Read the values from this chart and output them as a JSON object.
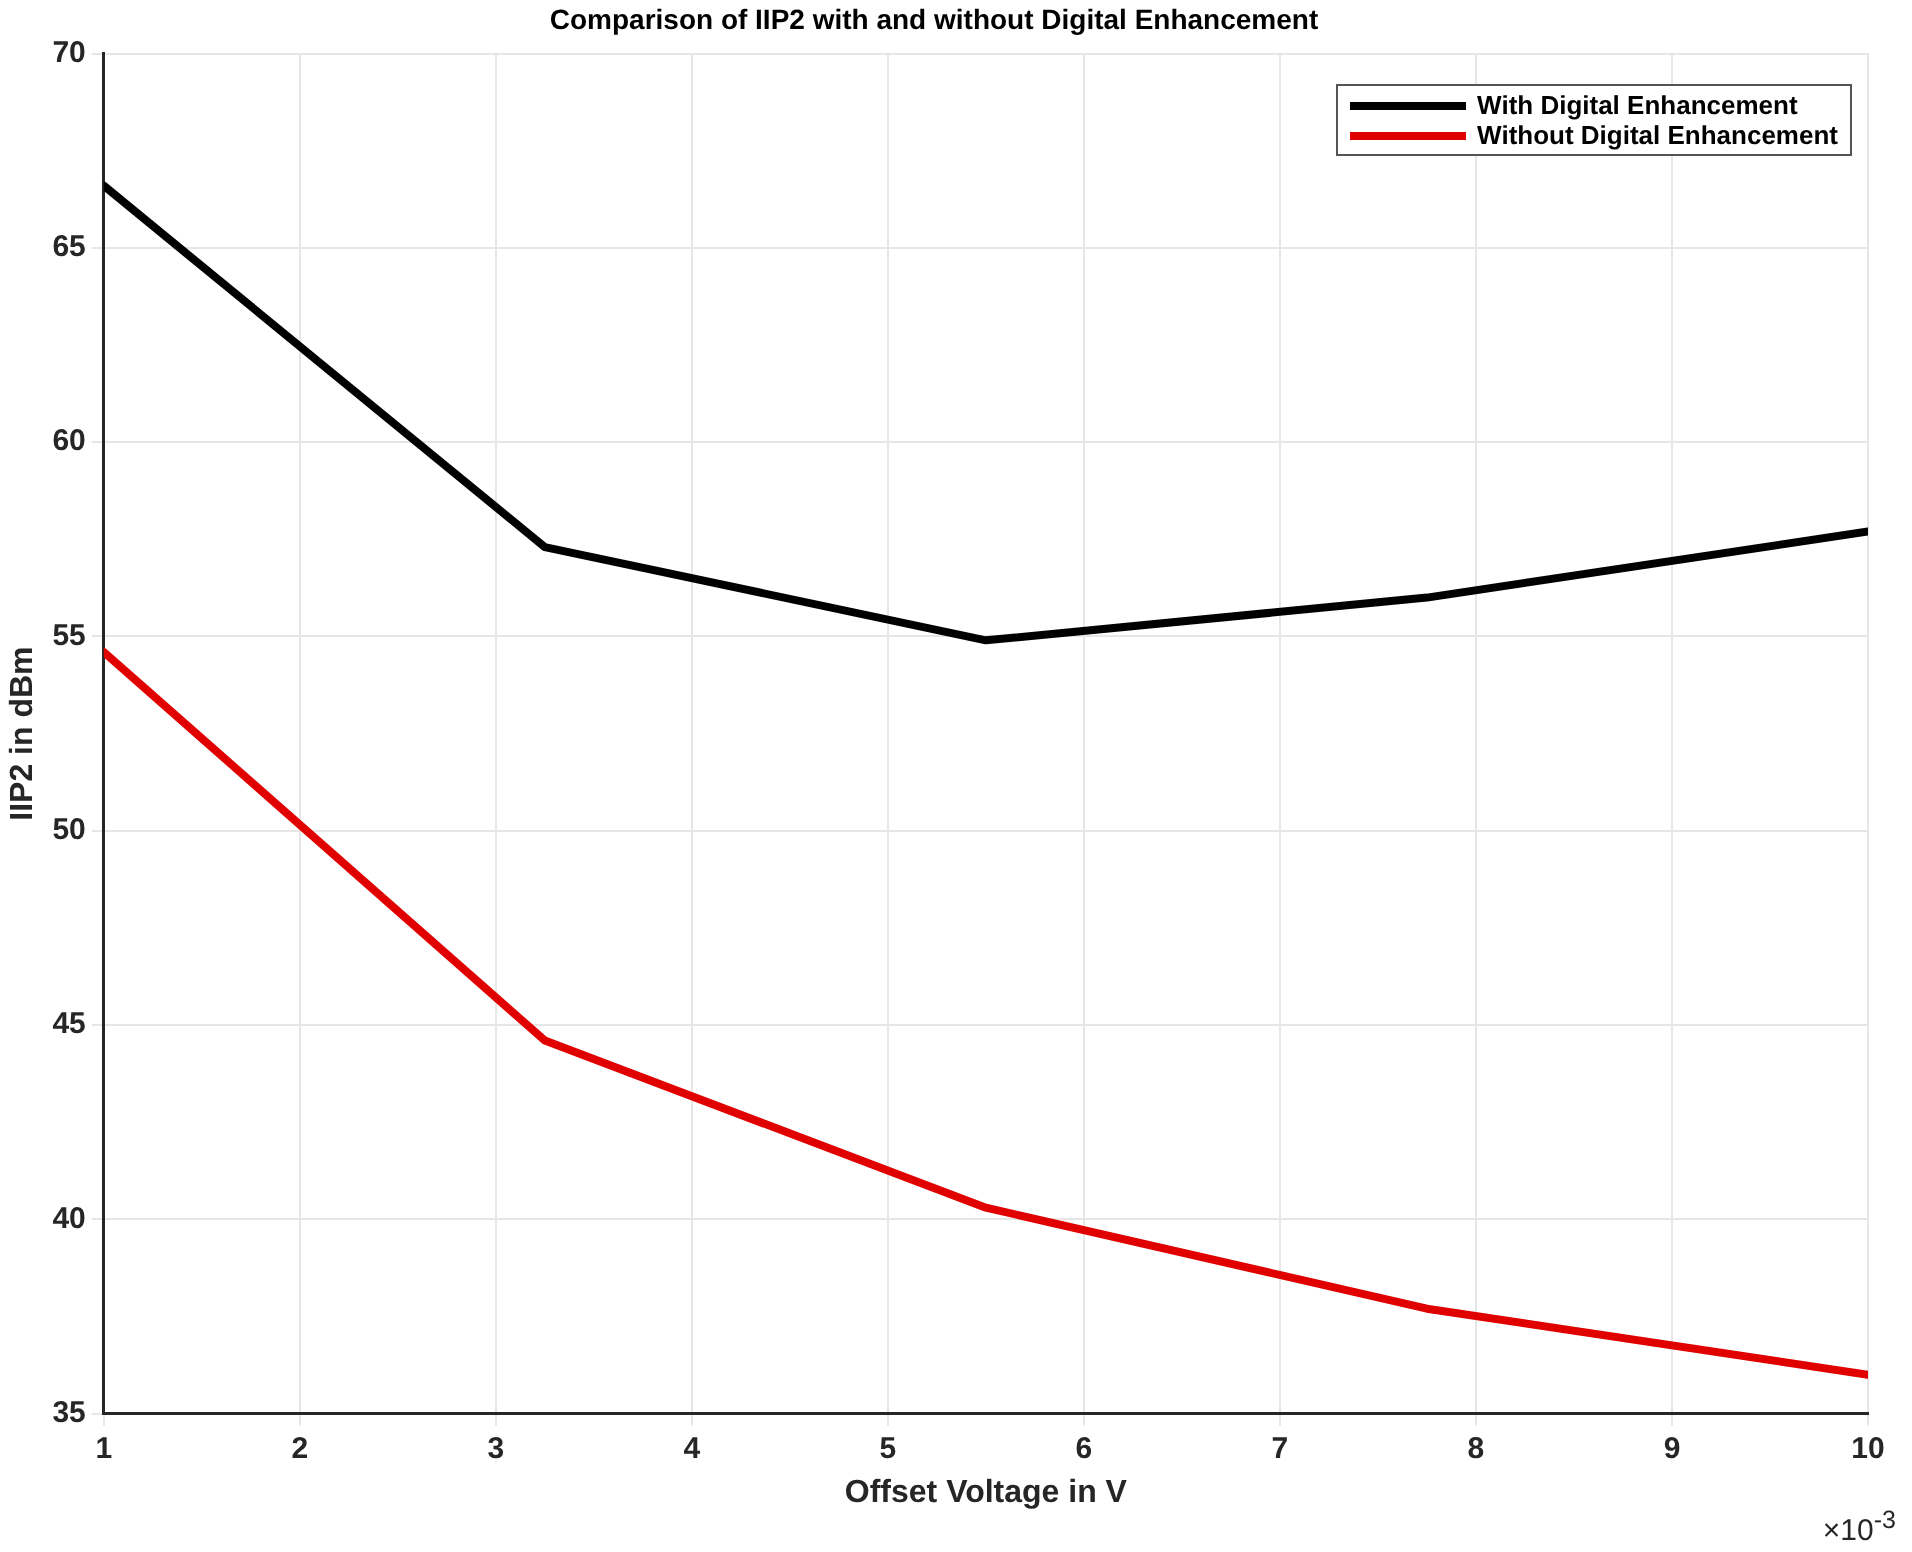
{
  "chart_data": {
    "type": "line",
    "title": "Comparison of IIP2 with and without Digital Enhancement",
    "xlabel": "Offset Voltage in V",
    "ylabel": "IIP2 in dBm",
    "x": [
      1,
      3.25,
      5.5,
      7.75,
      10
    ],
    "series": [
      {
        "name": "With Digital Enhancement",
        "color": "#000000",
        "values": [
          66.6,
          57.3,
          54.9,
          56.0,
          57.7
        ]
      },
      {
        "name": "Without Digital Enhancement",
        "color": "#e00000",
        "values": [
          54.6,
          44.6,
          40.3,
          37.7,
          36.0
        ]
      }
    ],
    "xlim": [
      1,
      10
    ],
    "xticks": [
      1,
      2,
      3,
      4,
      5,
      6,
      7,
      8,
      9,
      10
    ],
    "ylim": [
      35,
      70
    ],
    "yticks": [
      35,
      40,
      45,
      50,
      55,
      60,
      65,
      70
    ],
    "annotations": [
      "×10$^{-3}$"
    ],
    "grid": true,
    "legend": "top right",
    "marker": "none",
    "line_style": "solid"
  }
}
